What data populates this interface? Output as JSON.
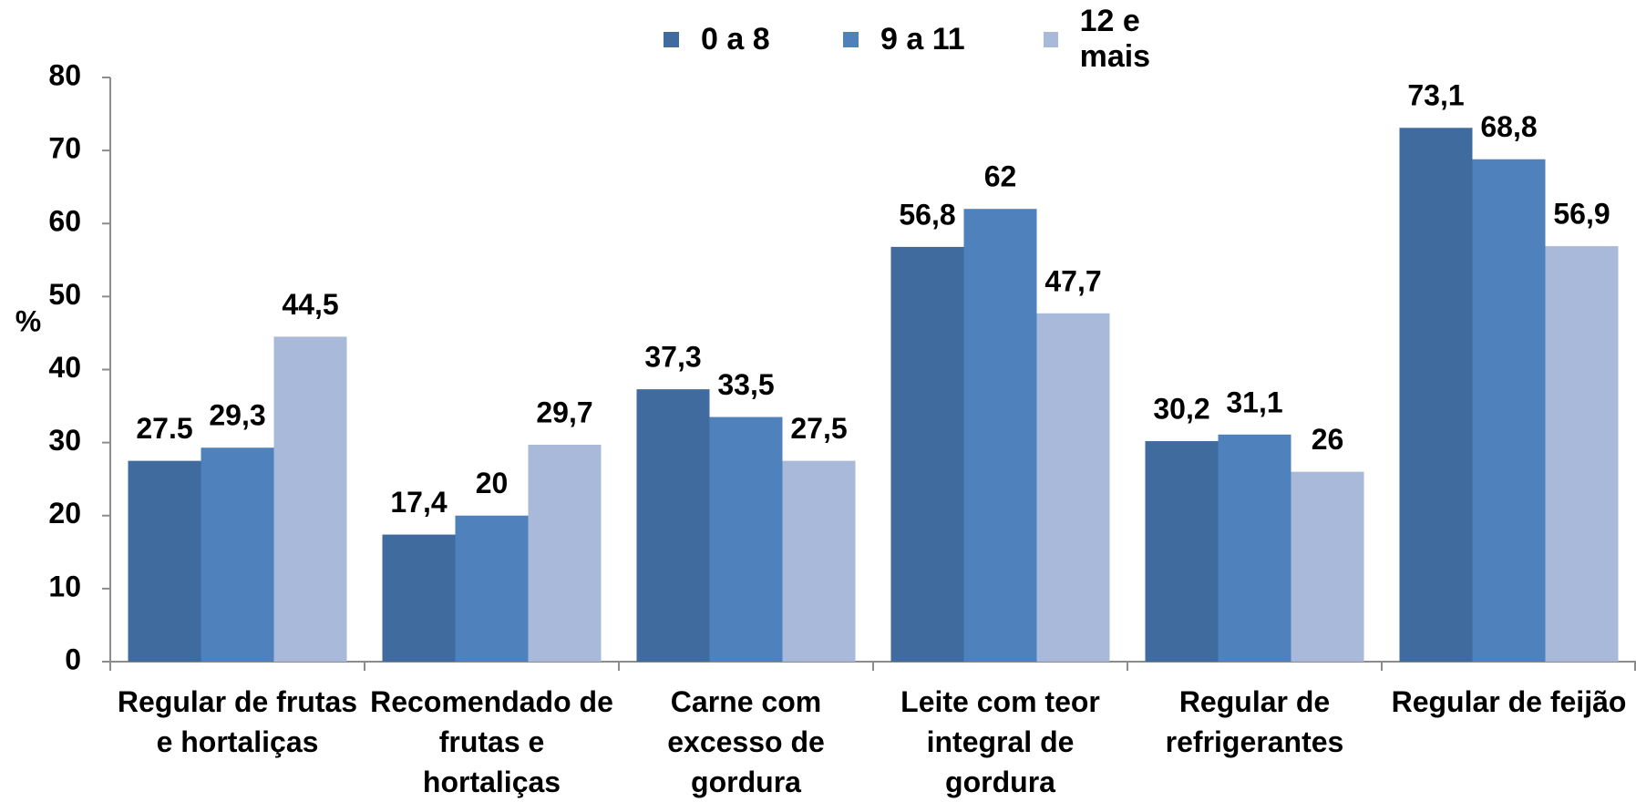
{
  "chart_data": {
    "type": "bar",
    "categories": [
      "Regular de frutas e hortaliças",
      "Recomendado de frutas e hortaliças",
      "Carne com excesso de gordura",
      "Leite com teor integral de gordura",
      "Regular de refrigerantes",
      "Regular de feijão"
    ],
    "series": [
      {
        "name": "0 a 8",
        "color": "#3f6b9f",
        "values": [
          27.5,
          17.4,
          37.3,
          56.8,
          30.2,
          73.1
        ],
        "value_labels": [
          "27.5",
          "17,4",
          "37,3",
          "56,8",
          "30,2",
          "73,1"
        ]
      },
      {
        "name": "9 a 11",
        "color": "#4f81bd",
        "values": [
          29.3,
          20,
          33.5,
          62,
          31.1,
          68.8
        ],
        "value_labels": [
          "29,3",
          "20",
          "33,5",
          "62",
          "31,1",
          "68,8"
        ]
      },
      {
        "name": "12 e mais",
        "color": "#a9b9d9",
        "values": [
          44.5,
          29.7,
          27.5,
          47.7,
          26,
          56.9
        ],
        "value_labels": [
          "44,5",
          "29,7",
          "27,5",
          "47,7",
          "26",
          "56,9"
        ]
      }
    ],
    "ylabel": "%",
    "ylim": [
      0,
      80
    ],
    "yticks": [
      0,
      10,
      20,
      30,
      40,
      50,
      60,
      70,
      80
    ],
    "grid": false,
    "legend": "top"
  }
}
